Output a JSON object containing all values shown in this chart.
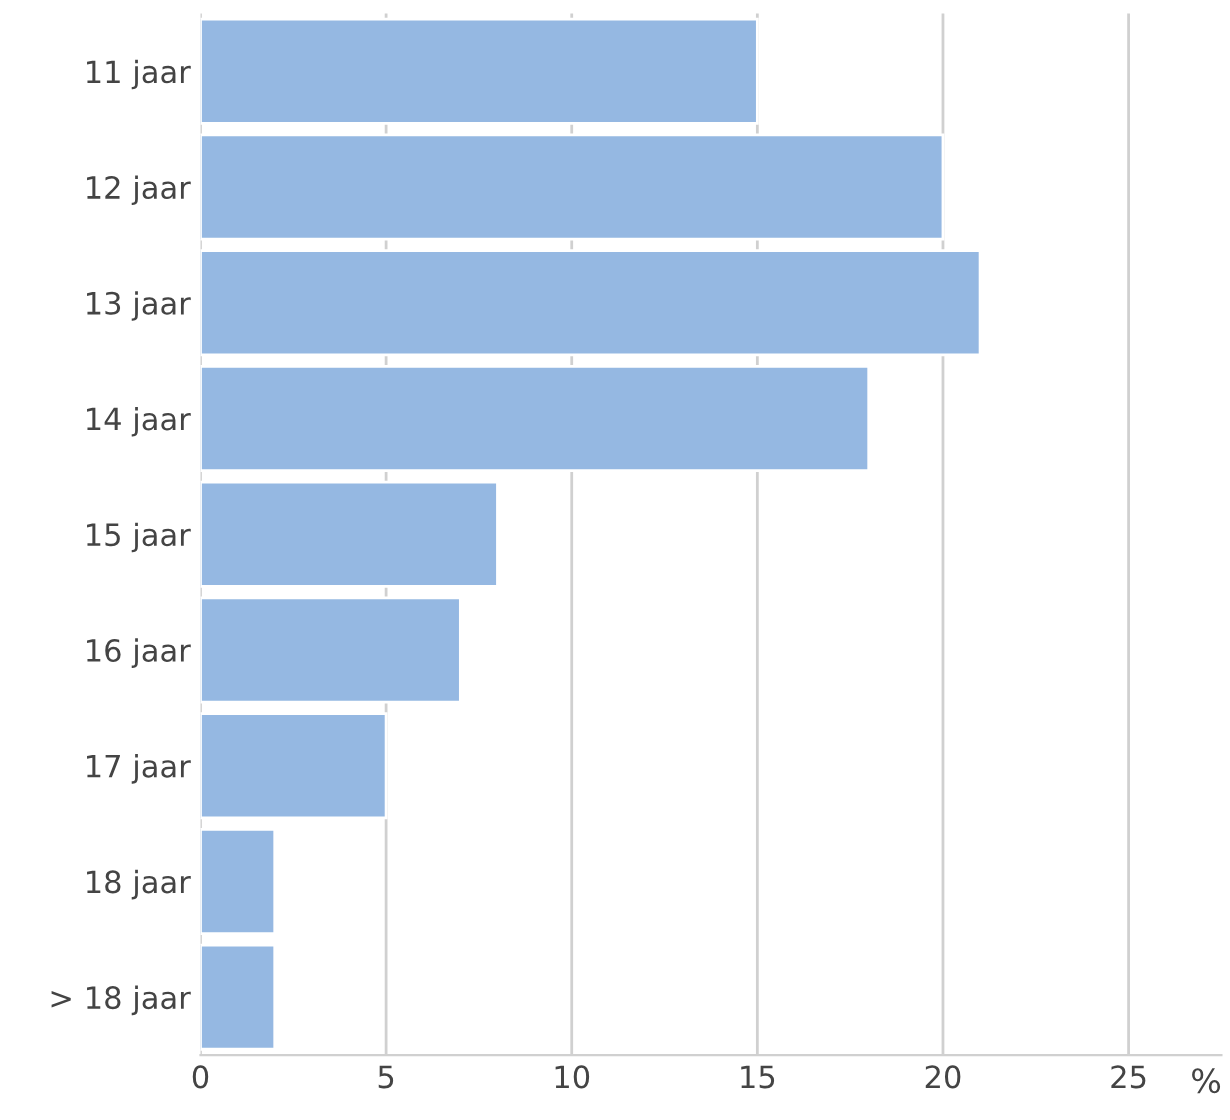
{
  "chart_data": {
    "type": "bar",
    "orientation": "horizontal",
    "xlabel": "%",
    "categories": [
      "11 jaar",
      "12 jaar",
      "13 jaar",
      "14 jaar",
      "15 jaar",
      "16 jaar",
      "17 jaar",
      "18 jaar",
      "> 18 jaar"
    ],
    "values": [
      15,
      20,
      21,
      18,
      8,
      7,
      5,
      2,
      2
    ],
    "color": "#95b8e2",
    "xlim": [
      0,
      27.5
    ],
    "xticks": [
      0,
      5,
      10,
      15,
      20,
      25
    ],
    "grid": "x",
    "legend": false
  }
}
